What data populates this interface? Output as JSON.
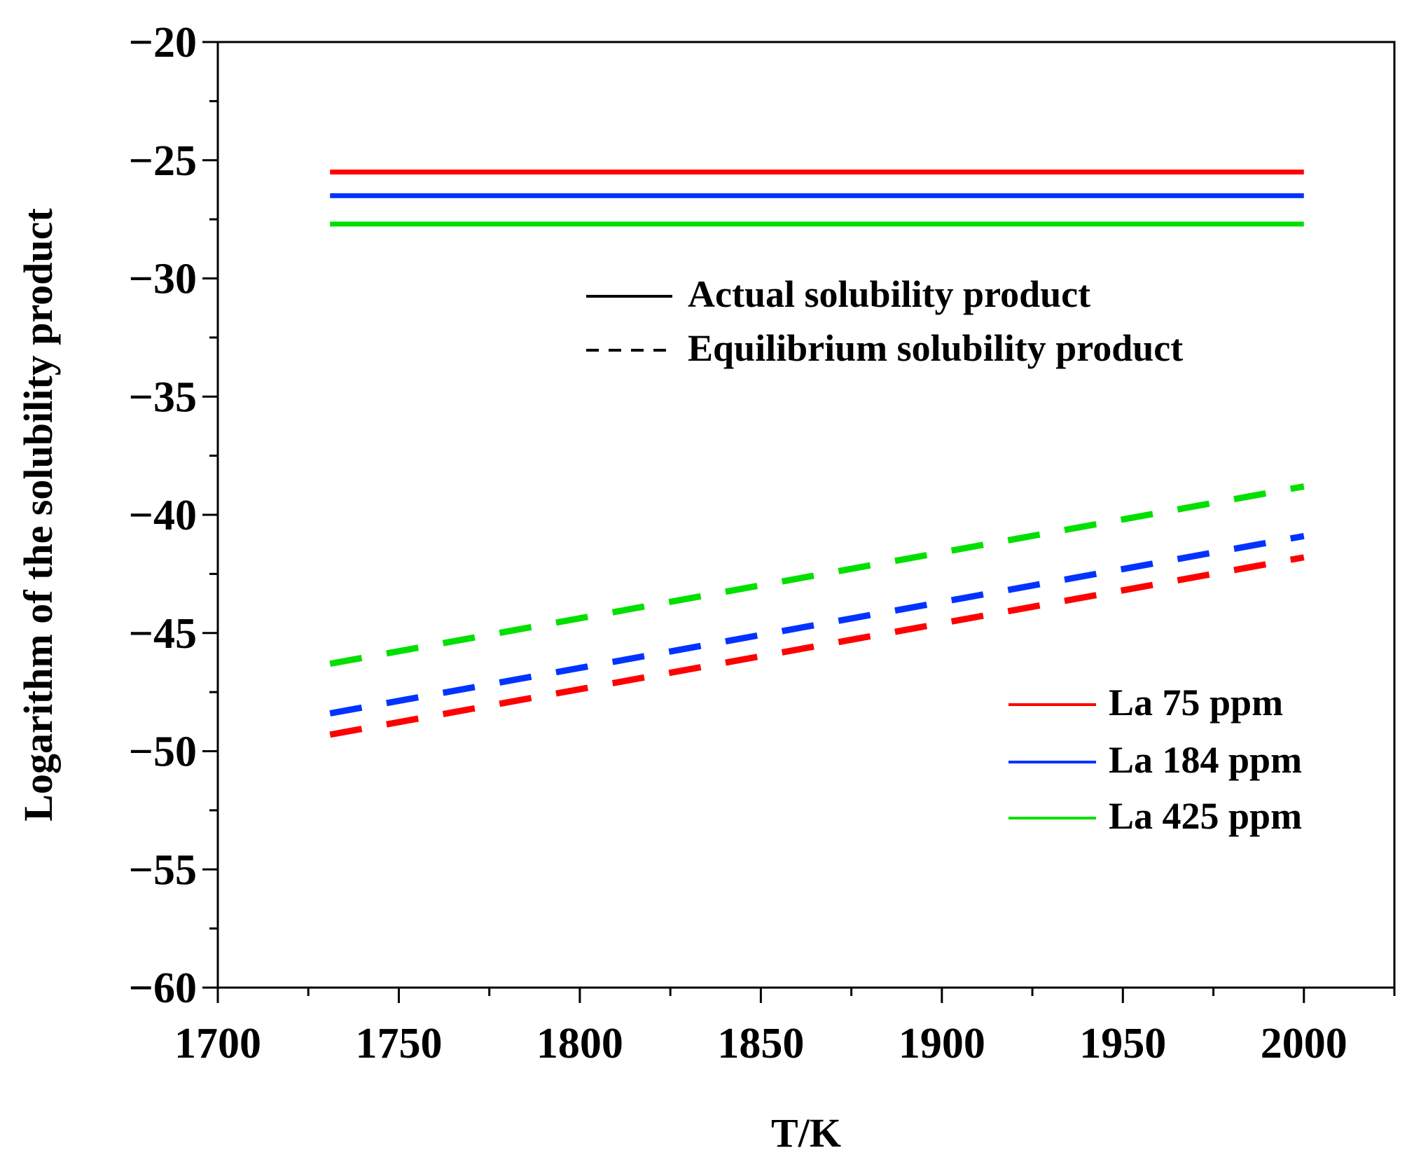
{
  "chart_data": {
    "type": "line",
    "title": "",
    "xlabel": "T/K",
    "ylabel": "Logarithm of the solubility product",
    "xlim": [
      1700,
      2025
    ],
    "ylim": [
      -60,
      -20
    ],
    "x_ticks": [
      1700,
      1750,
      1800,
      1850,
      1900,
      1950,
      2000
    ],
    "x_tick_labels": [
      "1700",
      "1750",
      "1800",
      "1850",
      "1900",
      "1950",
      "2000"
    ],
    "y_ticks": [
      -20,
      -25,
      -30,
      -35,
      -40,
      -45,
      -50,
      -55,
      -60
    ],
    "y_tick_labels": [
      "−20",
      "−25",
      "−30",
      "−35",
      "−40",
      "−45",
      "−50",
      "−55",
      "−60"
    ],
    "grid": false,
    "series": [
      {
        "name": "La 75 ppm actual",
        "group": "La 75 ppm",
        "style": "solid",
        "color": "#ff0000",
        "x": [
          1731,
          2000
        ],
        "y": [
          -25.5,
          -25.5
        ]
      },
      {
        "name": "La 184 ppm actual",
        "group": "La 184 ppm",
        "style": "solid",
        "color": "#0033ff",
        "x": [
          1731,
          2000
        ],
        "y": [
          -26.5,
          -26.5
        ]
      },
      {
        "name": "La 425 ppm actual",
        "group": "La 425 ppm",
        "style": "solid",
        "color": "#00e000",
        "x": [
          1731,
          2000
        ],
        "y": [
          -27.7,
          -27.7
        ]
      },
      {
        "name": "La 75 ppm equilibrium",
        "group": "La 75 ppm",
        "style": "dashed",
        "color": "#ff0000",
        "x": [
          1731,
          2000
        ],
        "y": [
          -49.3,
          -41.8
        ]
      },
      {
        "name": "La 184 ppm equilibrium",
        "group": "La 184 ppm",
        "style": "dashed",
        "color": "#0033ff",
        "x": [
          1731,
          2000
        ],
        "y": [
          -48.4,
          -40.9
        ]
      },
      {
        "name": "La 425 ppm equilibrium",
        "group": "La 425 ppm",
        "style": "dashed",
        "color": "#00e000",
        "x": [
          1731,
          2000
        ],
        "y": [
          -46.3,
          -38.8
        ]
      }
    ],
    "legend_style": {
      "position": "upper-right",
      "entries": [
        {
          "label": "Actual solubility product",
          "style": "solid",
          "color": "#000000"
        },
        {
          "label": "Equilibrium solubility product",
          "style": "dashed",
          "color": "#000000"
        }
      ]
    },
    "legend_series": {
      "position": "lower-right",
      "entries": [
        {
          "label": "La 75 ppm",
          "color": "#ff0000"
        },
        {
          "label": "La 184 ppm",
          "color": "#0033ff"
        },
        {
          "label": "La 425 ppm",
          "color": "#00e000"
        }
      ]
    }
  }
}
